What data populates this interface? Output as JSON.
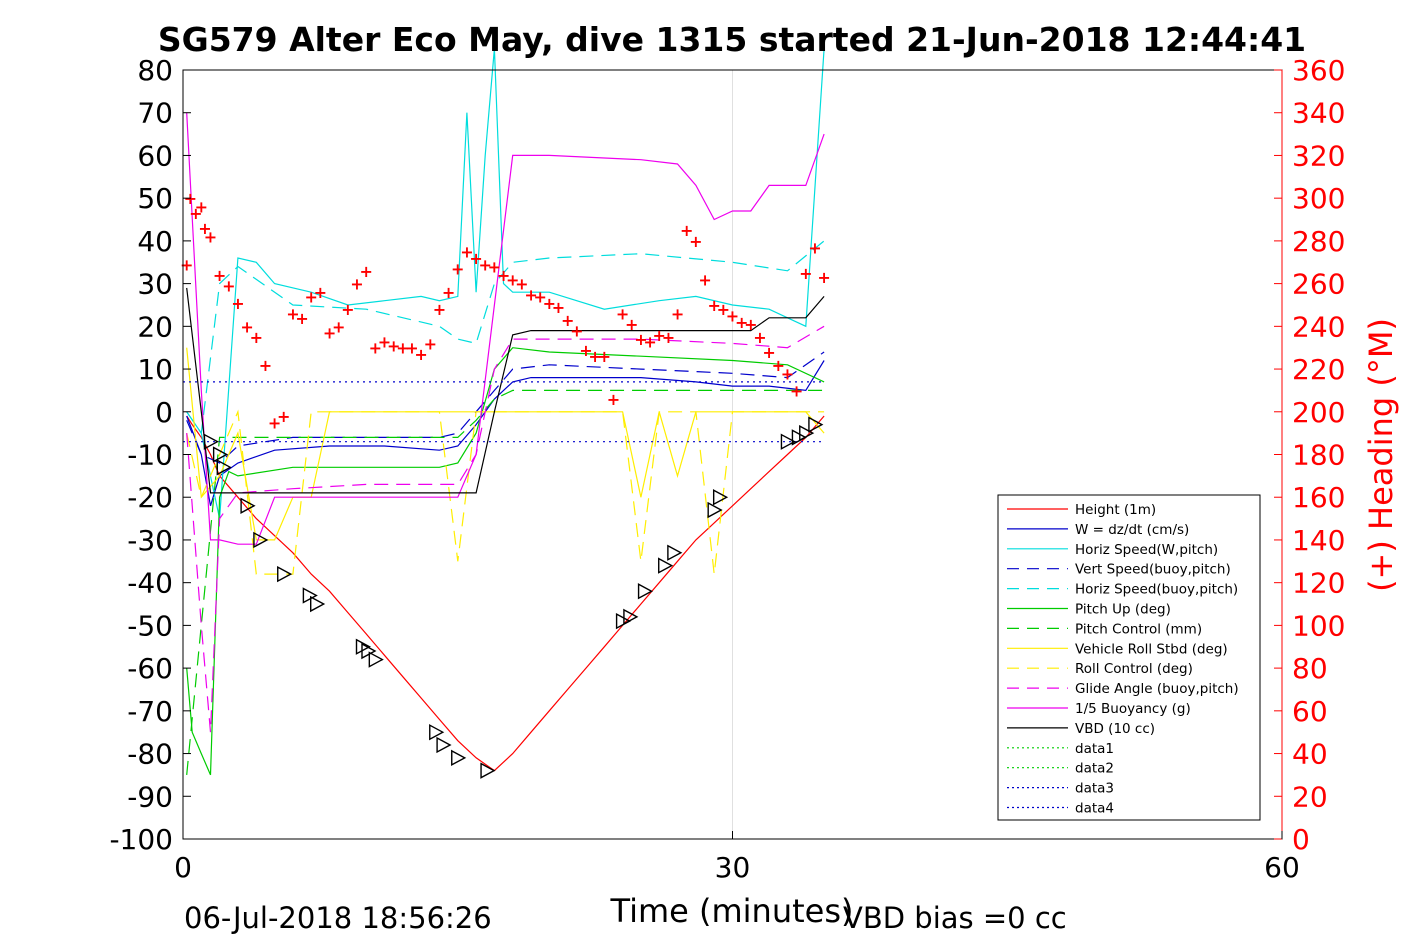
{
  "chart_data": {
    "type": "line",
    "title": "SG579 Alter Eco May, dive 1315 started 21-Jun-2018 12:44:41",
    "xlabel": "Time (minutes)",
    "ylabel_right": "(+) Heading (°M)",
    "xlim": [
      0,
      60
    ],
    "ylim": [
      -100,
      80
    ],
    "ylim_right": [
      0,
      360
    ],
    "x_ticks": [
      "0",
      "30",
      "60"
    ],
    "y_ticks": [
      "80",
      "70",
      "60",
      "50",
      "40",
      "30",
      "20",
      "10",
      "0",
      "-10",
      "-20",
      "-30",
      "-40",
      "-50",
      "-60",
      "-70",
      "-80",
      "-90",
      "-100"
    ],
    "y_ticks_right": [
      "360",
      "340",
      "320",
      "300",
      "280",
      "260",
      "240",
      "220",
      "200",
      "180",
      "160",
      "140",
      "120",
      "100",
      "80",
      "60",
      "40",
      "20",
      "0"
    ],
    "grid": "x at 30 only",
    "legend_position": "lower-right",
    "footer_left": "06-Jul-2018 18:56:26",
    "footer_right": "VBD bias =0 cc",
    "colors": {
      "axis": "#000000",
      "heading": "#ff0000",
      "grid": "#e0e0e0"
    },
    "series": [
      {
        "name": "Height (1m)",
        "color": "#ff0000",
        "style": "solid",
        "x": [
          0.2,
          0.5,
          1,
          1.5,
          2,
          3,
          4,
          5,
          6,
          7,
          8,
          9,
          10,
          11,
          12,
          13,
          14,
          15,
          16,
          17,
          18,
          19,
          20,
          21,
          22,
          23,
          24,
          25,
          26,
          27,
          28,
          29,
          30,
          31,
          32,
          33,
          34,
          35
        ],
        "y": [
          -1,
          -3,
          -6,
          -10,
          -15,
          -20,
          -25,
          -29,
          -33,
          -38,
          -42,
          -47,
          -52,
          -57,
          -62,
          -67,
          -72,
          -77,
          -81,
          -84,
          -80,
          -75,
          -70,
          -65,
          -60,
          -55,
          -50,
          -45,
          -40,
          -35,
          -30,
          -26,
          -22,
          -18,
          -14,
          -10,
          -6,
          -1
        ]
      },
      {
        "name": "W = dz/dt (cm/s)",
        "color": "#0000cc",
        "style": "solid",
        "x": [
          0.2,
          1,
          1.5,
          2,
          3,
          5,
          8,
          11,
          14,
          15,
          16,
          17,
          18,
          19,
          22,
          25,
          28,
          30,
          32,
          34,
          35
        ],
        "y": [
          -1,
          -10,
          -22,
          -15,
          -12,
          -9,
          -8,
          -8,
          -9,
          -8,
          -3,
          3,
          7,
          8,
          8,
          8,
          7,
          6,
          6,
          5,
          12
        ]
      },
      {
        "name": "Horiz Speed(W,pitch)",
        "color": "#00dddd",
        "style": "solid",
        "x": [
          0.2,
          1,
          2,
          3,
          4,
          5,
          7,
          9,
          11,
          13,
          14,
          15,
          15.5,
          16,
          16.5,
          17,
          17.5,
          18,
          20,
          23,
          26,
          28,
          30,
          32,
          33,
          34,
          35
        ],
        "y": [
          0,
          -5,
          -25,
          36,
          35,
          30,
          28,
          25,
          26,
          27,
          26,
          27,
          70,
          28,
          60,
          85,
          30,
          28,
          28,
          24,
          26,
          27,
          25,
          24,
          22,
          20,
          85
        ]
      },
      {
        "name": "Vert Speed(buoy,pitch)",
        "color": "#0000cc",
        "style": "dashed",
        "x": [
          0.2,
          1,
          2,
          3,
          6,
          10,
          14,
          15,
          16,
          17,
          18,
          20,
          25,
          30,
          33,
          35
        ],
        "y": [
          -2,
          -10,
          -12,
          -8,
          -6,
          -6,
          -6,
          -5,
          0,
          5,
          10,
          11,
          10,
          9,
          8,
          14
        ]
      },
      {
        "name": "Horiz Speed(buoy,pitch)",
        "color": "#00dddd",
        "style": "dashed",
        "x": [
          0.2,
          1,
          2,
          3,
          6,
          10,
          14,
          15,
          16,
          17,
          18,
          20,
          25,
          30,
          33,
          35
        ],
        "y": [
          0,
          -5,
          30,
          34,
          25,
          24,
          20,
          17,
          16,
          30,
          35,
          36,
          37,
          35,
          33,
          40
        ]
      },
      {
        "name": "Pitch Up (deg)",
        "color": "#00cc00",
        "style": "solid",
        "x": [
          0.2,
          0.5,
          1,
          1.5,
          2,
          2.5,
          3,
          6,
          10,
          14,
          15,
          16,
          17,
          18,
          20,
          25,
          30,
          33,
          35
        ],
        "y": [
          -60,
          -75,
          -80,
          -85,
          -20,
          -14,
          -15,
          -13,
          -13,
          -13,
          -12,
          -5,
          10,
          15,
          14,
          13,
          12,
          11,
          7
        ]
      },
      {
        "name": "Pitch Control (mm)",
        "color": "#00cc00",
        "style": "dashed",
        "x": [
          0.2,
          2,
          3,
          6,
          10,
          14,
          15,
          16,
          17,
          18,
          20,
          25,
          30,
          33,
          35
        ],
        "y": [
          -85,
          -6,
          -6,
          -6,
          -6,
          -6,
          -6,
          -2,
          3,
          5,
          5,
          5,
          5,
          5,
          5
        ]
      },
      {
        "name": "Vehicle Roll Stbd (deg)",
        "color": "#ffee00",
        "style": "solid",
        "x": [
          0.2,
          1,
          2,
          3,
          4,
          5,
          6,
          7,
          8,
          10,
          12,
          14,
          15,
          16,
          17,
          18,
          20,
          24,
          25,
          26,
          27,
          28,
          29,
          30,
          31,
          33,
          34,
          35
        ],
        "y": [
          15,
          -20,
          -15,
          -5,
          -30,
          -30,
          -20,
          -20,
          0,
          0,
          0,
          0,
          0,
          0,
          0,
          0,
          0,
          0,
          -20,
          0,
          -15,
          0,
          0,
          0,
          0,
          0,
          0,
          -5
        ]
      },
      {
        "name": "Roll Control (deg)",
        "color": "#ffee00",
        "style": "dashed",
        "x": [
          0.2,
          1,
          2,
          3,
          4,
          5,
          6,
          7,
          8,
          10,
          12,
          14,
          15,
          16,
          17,
          18,
          20,
          24,
          25,
          26,
          27,
          28,
          29,
          30,
          31,
          33,
          34,
          35
        ],
        "y": [
          -5,
          -20,
          -10,
          0,
          -38,
          -38,
          -38,
          0,
          0,
          0,
          0,
          0,
          -35,
          0,
          0,
          0,
          0,
          0,
          -35,
          0,
          0,
          0,
          -38,
          0,
          0,
          0,
          0,
          0
        ]
      },
      {
        "name": "Glide Angle (buoy,pitch)",
        "color": "#ee00ee",
        "style": "dashed",
        "x": [
          0.2,
          1,
          1.5,
          2,
          3,
          6,
          10,
          14,
          15,
          16,
          17,
          18,
          20,
          25,
          30,
          33,
          35
        ],
        "y": [
          -5,
          -50,
          -75,
          -25,
          -19,
          -18,
          -17,
          -17,
          -17,
          -10,
          10,
          17,
          17,
          17,
          16,
          15,
          20
        ]
      },
      {
        "name": "1/5 Buoyancy (g)",
        "color": "#ee00ee",
        "style": "solid",
        "x": [
          0.2,
          1,
          1.5,
          2,
          3,
          4,
          5,
          6,
          8,
          10,
          12,
          14,
          15,
          16,
          17,
          18,
          19,
          20,
          25,
          27,
          28,
          29,
          30,
          31,
          32,
          34,
          35
        ],
        "y": [
          70,
          5,
          -30,
          -30,
          -31,
          -31,
          -20,
          -20,
          -20,
          -20,
          -20,
          -20,
          -20,
          -10,
          25,
          60,
          60,
          60,
          59,
          58,
          53,
          45,
          47,
          47,
          53,
          53,
          65
        ]
      },
      {
        "name": "VBD (10 cc)",
        "color": "#000000",
        "style": "solid",
        "x": [
          0.2,
          1,
          1.5,
          2,
          4,
          8,
          12,
          15,
          16,
          17,
          18,
          19,
          22,
          25,
          28,
          31,
          32,
          33,
          34,
          35
        ],
        "y": [
          29,
          0,
          -19,
          -19,
          -19,
          -19,
          -19,
          -19,
          -19,
          0,
          18,
          19,
          19,
          19,
          19,
          19,
          22,
          22,
          22,
          27
        ]
      },
      {
        "name": "data1",
        "color": "#00cc00",
        "style": "dotted",
        "x": [],
        "y": []
      },
      {
        "name": "data2",
        "color": "#00cc00",
        "style": "dotted",
        "x": [],
        "y": []
      },
      {
        "name": "data3",
        "color": "#0000cc",
        "style": "dotted",
        "x": [
          0,
          35
        ],
        "y": [
          7,
          7
        ]
      },
      {
        "name": "data4",
        "color": "#0000cc",
        "style": "dotted",
        "x": [
          0,
          35
        ],
        "y": [
          -7,
          -7
        ]
      }
    ],
    "heading_points": {
      "x": [
        0.2,
        0.4,
        0.7,
        1,
        1.2,
        1.5,
        2,
        2.5,
        3,
        3.5,
        4,
        4.5,
        5,
        5.5,
        6,
        6.5,
        7,
        7.5,
        8,
        8.5,
        9,
        9.5,
        10,
        10.5,
        11,
        11.5,
        12,
        12.5,
        13,
        13.5,
        14,
        14.5,
        15,
        15.5,
        16,
        16.5,
        17,
        17.5,
        18,
        18.5,
        19,
        19.5,
        20,
        20.5,
        21,
        21.5,
        22,
        22.5,
        23,
        23.5,
        24,
        24.5,
        25,
        25.5,
        26,
        26.5,
        27,
        27.5,
        28,
        28.5,
        29,
        29.5,
        30,
        30.5,
        31,
        31.5,
        32,
        32.5,
        33,
        33.5,
        34,
        34.5,
        35
      ],
      "y": [
        269,
        300,
        293,
        296,
        286,
        282,
        264,
        259,
        251,
        240,
        235,
        222,
        195,
        198,
        246,
        244,
        254,
        256,
        237,
        240,
        248,
        260,
        266,
        230,
        233,
        231,
        230,
        230,
        227,
        232,
        248,
        256,
        267,
        275,
        272,
        269,
        268,
        264,
        262,
        260,
        255,
        254,
        251,
        249,
        243,
        238,
        229,
        226,
        226,
        206,
        246,
        241,
        234,
        233,
        236,
        235,
        246,
        285,
        280,
        262,
        250,
        248,
        245,
        242,
        241,
        235,
        228,
        222,
        218,
        210,
        265,
        277,
        263
      ]
    },
    "triangle_markers": {
      "x": [
        1.5,
        2,
        2.2,
        3.5,
        4.2,
        5.5,
        6.9,
        7.3,
        9.8,
        10.1,
        10.5,
        13.8,
        14.2,
        15,
        16.6,
        24,
        24.4,
        25.2,
        26.3,
        26.8,
        29,
        29.3,
        33,
        33.6,
        34,
        34.5
      ],
      "y": [
        -7,
        -10,
        -13,
        -22,
        -30,
        -38,
        -43,
        -45,
        -55,
        -56,
        -58,
        -75,
        -78,
        -81,
        -84,
        -49,
        -48,
        -42,
        -36,
        -33,
        -23,
        -20,
        -7,
        -6,
        -5,
        -3
      ]
    }
  }
}
